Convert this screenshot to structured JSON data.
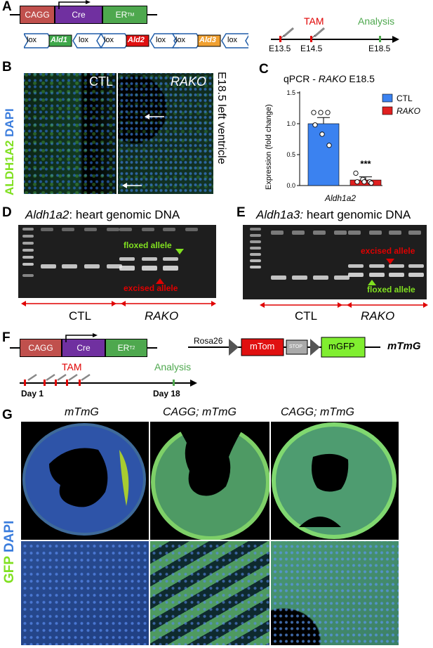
{
  "panels": {
    "A": "A",
    "B": "B",
    "C": "C",
    "D": "D",
    "E": "E",
    "F": "F",
    "G": "G"
  },
  "panelA": {
    "construct": [
      "CAGG",
      "Cre",
      "ER",
      "TM"
    ],
    "lox": "lox",
    "alleles": [
      "Ald1",
      "Ald2",
      "Ald3"
    ],
    "tam": "TAM",
    "analysis": "Analysis",
    "timepoints": [
      "E13.5",
      "E14.5",
      "E18.5"
    ]
  },
  "panelB": {
    "stain_green": "ALDH1A2",
    "stain_blue": "DAPI",
    "ctl": "CTL",
    "rako": "RAKO",
    "side_label": "E18.5 left ventricle"
  },
  "panelC": {
    "title_prefix": "qPCR - ",
    "title_italic": "RAKO",
    "title_suffix": " E18.5",
    "ylabel": "Expression (fold change)",
    "xlabel": "Aldh1a2",
    "legend": [
      "CTL",
      "RAKO"
    ],
    "significance": "***"
  },
  "chart_data": {
    "type": "bar",
    "categories": [
      "CTL",
      "RAKO"
    ],
    "values": [
      1.0,
      0.09
    ],
    "errors": [
      0.1,
      0.05
    ],
    "points": [
      [
        1.18,
        1.18,
        1.18,
        0.98,
        0.83,
        0.65
      ],
      [
        0.2,
        0.1,
        0.06,
        0.06,
        0.06,
        0.04
      ]
    ],
    "colors": [
      "#3b82f0",
      "#e02020"
    ],
    "ylim": [
      0,
      1.5
    ],
    "yticks": [
      "0.0",
      "0.5",
      "1.0",
      "1.5"
    ],
    "legend_position": "top-right"
  },
  "panelD": {
    "title_italic": "Aldh1a2",
    "title_rest": ": heart genomic DNA",
    "floxed": "floxed allele",
    "excised": "excised allele",
    "ctl": "CTL",
    "rako": "RAKO"
  },
  "panelE": {
    "title_italic": "Aldh1a3:",
    "title_rest": " heart genomic DNA",
    "excised": "excised allele",
    "floxed": "floxed allele",
    "ctl": "CTL",
    "rako": "RAKO"
  },
  "panelF": {
    "construct": [
      "CAGG",
      "Cre",
      "ER",
      "T2"
    ],
    "rosa": "Rosa26",
    "mtom": "mTom",
    "stop": "STOP",
    "mgfp": "mGFP",
    "mtmg": "mTmG",
    "tam": "TAM",
    "analysis": "Analysis",
    "day1": "Day 1",
    "day18": "Day 18"
  },
  "panelG": {
    "col_titles": [
      "mTmG",
      "CAGG; mTmG",
      "CAGG; mTmG"
    ],
    "stain_green": "GFP",
    "stain_blue": "DAPI"
  },
  "colors": {
    "cagg": "#c0504d",
    "cre": "#7030a0",
    "er": "#4ea84e",
    "ald1": "#3fa84a",
    "ald2": "#e01010",
    "ald3": "#f0a030",
    "lox": "#1f5ca8",
    "green_text": "#80e020",
    "red_text": "#e00000"
  }
}
